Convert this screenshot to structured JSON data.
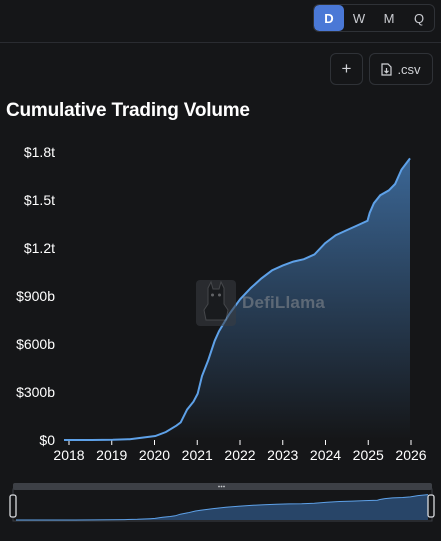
{
  "toolbar": {
    "periods": [
      {
        "label": "D",
        "active": true
      },
      {
        "label": "W",
        "active": false
      },
      {
        "label": "M",
        "active": false
      },
      {
        "label": "Q",
        "active": false
      }
    ],
    "add_label": "+",
    "csv_label": ".csv"
  },
  "watermark": {
    "text": "DefiLlama"
  },
  "chart_data": {
    "type": "area",
    "title": "Cumulative Trading Volume",
    "xlabel": "",
    "ylabel": "",
    "x_ticks": [
      "2018",
      "2019",
      "2020",
      "2021",
      "2022",
      "2023",
      "2024",
      "2025",
      "2026"
    ],
    "y_ticks": [
      "$0",
      "$300b",
      "$600b",
      "$900b",
      "$1.2t",
      "$1.5t",
      "$1.8t"
    ],
    "y_tick_values": [
      0,
      300,
      600,
      900,
      1200,
      1500,
      1800
    ],
    "ylim": [
      0,
      1800
    ],
    "xlim": [
      2017.85,
      2026.0
    ],
    "unit": "billion USD",
    "grid": false,
    "legend": "none",
    "colors": {
      "line": "#5ea1e8",
      "fill_top": "#3f6fa3",
      "fill_bottom": "#151618"
    },
    "series": [
      {
        "x": [
          2017.85,
          2018.5,
          2019.0,
          2019.4,
          2019.7,
          2020.0,
          2020.25,
          2020.5,
          2020.6,
          2020.75,
          2020.9,
          2021.0,
          2021.1,
          2021.25,
          2021.4,
          2021.5,
          2021.75,
          2022.0,
          2022.25,
          2022.5,
          2022.75,
          2023.0,
          2023.25,
          2023.5,
          2023.75,
          2024.0,
          2024.25,
          2024.5,
          2024.75,
          2025.0,
          2025.05,
          2025.15,
          2025.3,
          2025.5,
          2025.65,
          2025.8,
          2026.0
        ],
        "values": [
          0,
          0,
          1,
          5,
          15,
          25,
          50,
          90,
          110,
          190,
          240,
          290,
          400,
          500,
          620,
          680,
          790,
          880,
          950,
          1010,
          1060,
          1090,
          1115,
          1130,
          1160,
          1230,
          1280,
          1310,
          1340,
          1370,
          1420,
          1480,
          1530,
          1560,
          1600,
          1690,
          1760
        ]
      }
    ]
  }
}
